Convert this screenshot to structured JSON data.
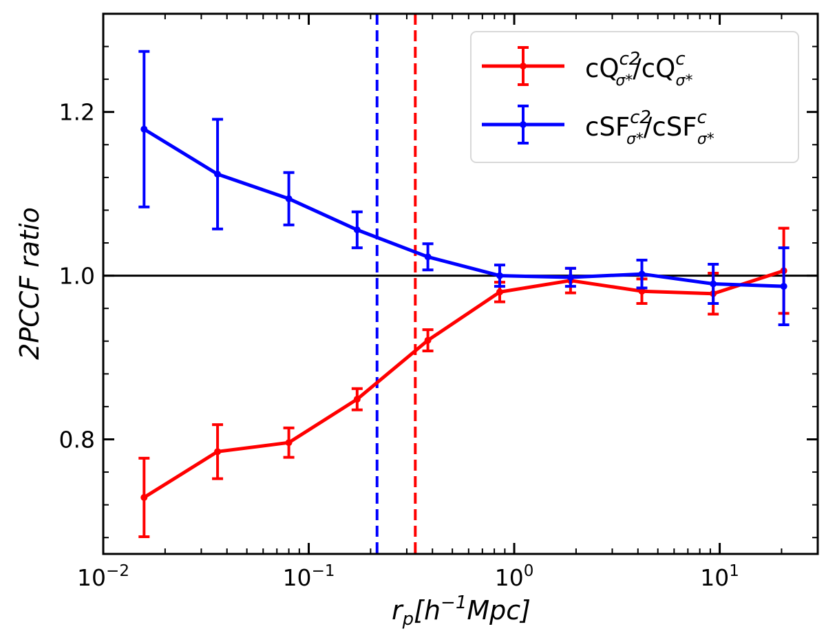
{
  "chart_data": {
    "type": "line",
    "xscale": "log",
    "xlim": [
      0.01,
      30
    ],
    "ylim": [
      0.66,
      1.32
    ],
    "xlabel": {
      "base": "r",
      "sub": "p",
      "rest": "[h",
      "sup": "−1",
      "unit": "Mpc]"
    },
    "ylabel": "2PCCF ratio",
    "x_ticks": [
      {
        "value": 0.01,
        "base": "10",
        "exp": "−2"
      },
      {
        "value": 0.1,
        "base": "10",
        "exp": "−1"
      },
      {
        "value": 1,
        "base": "10",
        "exp": "0"
      },
      {
        "value": 10,
        "base": "10",
        "exp": "1"
      }
    ],
    "y_ticks": [
      {
        "value": 0.8,
        "label": "0.8"
      },
      {
        "value": 1.0,
        "label": "1.0"
      },
      {
        "value": 1.2,
        "label": "1.2"
      }
    ],
    "reference_line": {
      "y": 1.0,
      "color": "#000000"
    },
    "vlines": [
      {
        "x": 0.215,
        "color": "#0000ff",
        "style": "dashed"
      },
      {
        "x": 0.33,
        "color": "#ff0000",
        "style": "dashed"
      }
    ],
    "x": [
      0.0158,
      0.036,
      0.08,
      0.172,
      0.38,
      0.85,
      1.88,
      4.18,
      9.3,
      20.5
    ],
    "series": [
      {
        "name": "cQ^{c2}_{σ*}/cQ^{c}_{σ*}",
        "color": "#ff0000",
        "values": [
          0.729,
          0.785,
          0.796,
          0.849,
          0.921,
          0.98,
          0.994,
          0.981,
          0.978,
          1.006
        ],
        "errors": [
          0.048,
          0.033,
          0.018,
          0.013,
          0.013,
          0.012,
          0.015,
          0.015,
          0.025,
          0.052
        ]
      },
      {
        "name": "cSF^{c2}_{σ*}/cSF^{c}_{σ*}",
        "color": "#0000ff",
        "values": [
          1.179,
          1.124,
          1.094,
          1.056,
          1.023,
          1.0,
          0.998,
          1.002,
          0.99,
          0.987
        ],
        "errors": [
          0.095,
          0.067,
          0.032,
          0.022,
          0.016,
          0.013,
          0.011,
          0.017,
          0.024,
          0.047
        ]
      }
    ],
    "legend": {
      "position": "top-right",
      "entries": [
        {
          "color": "#ff0000",
          "main1": "cQ",
          "sup1": "c2",
          "sub1": "σ*",
          "slash": "/",
          "main2": "cQ",
          "sup2": "c",
          "sub2": "σ*"
        },
        {
          "color": "#0000ff",
          "main1": "cSF",
          "sup1": "c2",
          "sub1": "σ*",
          "slash": "/",
          "main2": "cSF",
          "sup2": "c",
          "sub2": "σ*"
        }
      ]
    }
  }
}
